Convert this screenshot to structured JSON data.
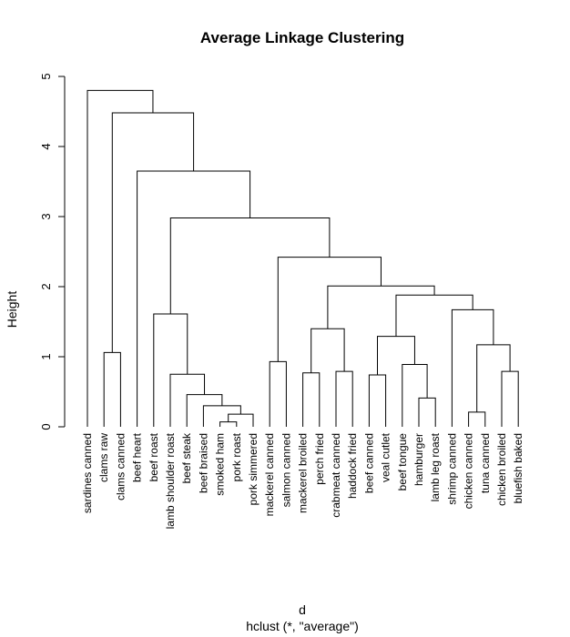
{
  "chart_data": {
    "type": "dendrogram",
    "title": "Average Linkage Clustering",
    "ylabel": "Height",
    "xlabel": "d",
    "sublabel": "hclust (*, \"average\")",
    "ylim": [
      0,
      5
    ],
    "yticks": [
      0,
      1,
      2,
      3,
      4,
      5
    ],
    "leaves": [
      "sardines canned",
      "clams raw",
      "clams canned",
      "beef heart",
      "beef roast",
      "lamb shoulder roast",
      "beef steak",
      "beef braised",
      "smoked ham",
      "pork roast",
      "pork simmered",
      "mackerel canned",
      "salmon canned",
      "mackerel broiled",
      "perch fried",
      "crabmeat canned",
      "haddock fried",
      "beef canned",
      "veal cutlet",
      "beef tongue",
      "hamburger",
      "lamb leg roast",
      "shrimp canned",
      "chicken canned",
      "tuna canned",
      "chicken broiled",
      "bluefish baked"
    ],
    "merges": [
      [
        -9,
        -10,
        0.07
      ],
      [
        -24,
        -25,
        0.21
      ],
      [
        -11,
        1,
        0.18
      ],
      [
        -8,
        3,
        0.3
      ],
      [
        -21,
        -22,
        0.41
      ],
      [
        -7,
        4,
        0.46
      ],
      [
        -6,
        6,
        0.75
      ],
      [
        -18,
        -19,
        0.74
      ],
      [
        -14,
        -15,
        0.77
      ],
      [
        -16,
        -17,
        0.79
      ],
      [
        -26,
        -27,
        0.79
      ],
      [
        -20,
        5,
        0.89
      ],
      [
        -12,
        -13,
        0.93
      ],
      [
        -2,
        -3,
        1.06
      ],
      [
        2,
        11,
        1.17
      ],
      [
        8,
        12,
        1.29
      ],
      [
        9,
        10,
        1.4
      ],
      [
        -5,
        7,
        1.61
      ],
      [
        -23,
        15,
        1.67
      ],
      [
        16,
        19,
        1.88
      ],
      [
        17,
        20,
        2.01
      ],
      [
        13,
        21,
        2.42
      ],
      [
        18,
        22,
        2.98
      ],
      [
        -4,
        23,
        3.65
      ],
      [
        14,
        24,
        4.48
      ],
      [
        -1,
        25,
        4.8
      ]
    ]
  }
}
